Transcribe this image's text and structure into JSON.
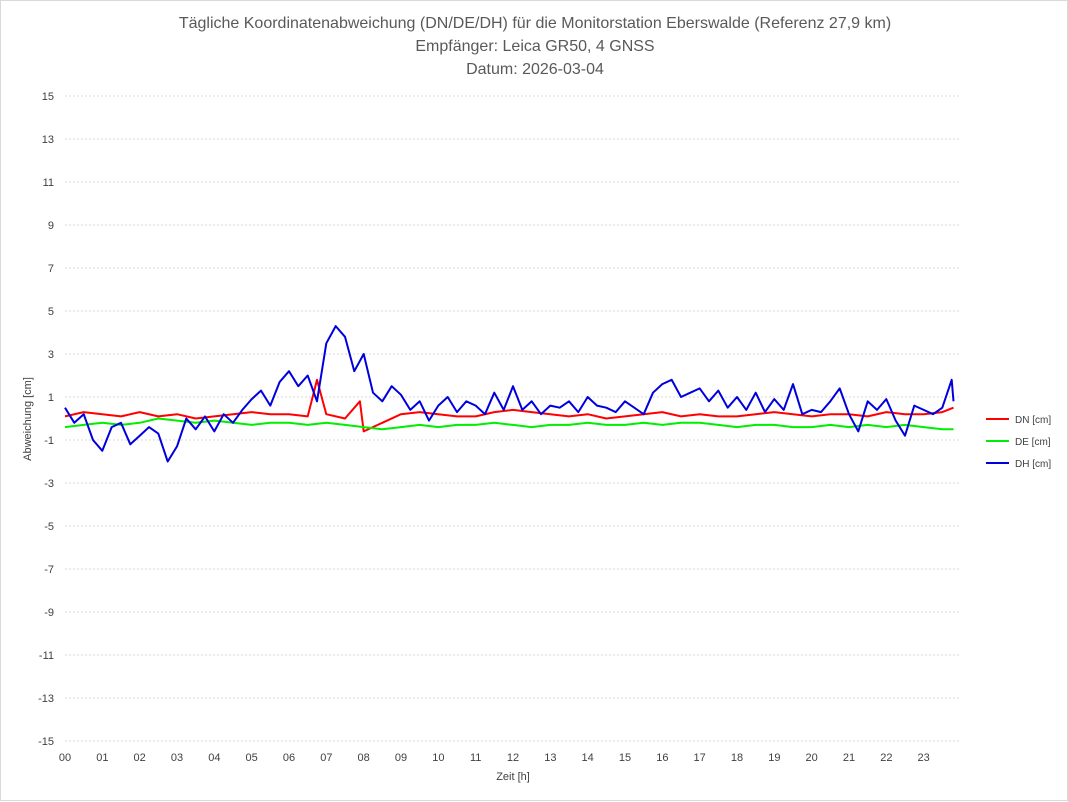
{
  "chart_data": {
    "type": "line",
    "title_lines": [
      "Tägliche Koordinatenabweichung (DN/DE/DH) für die Monitorstation Eberswalde (Referenz 27,9 km)",
      "Empfänger: Leica GR50, 4 GNSS",
      "Datum: 2026-03-04"
    ],
    "xlabel": "Zeit [h]",
    "ylabel": "Abweichung [cm]",
    "xlim": [
      0,
      24
    ],
    "ylim": [
      -15,
      15
    ],
    "x_ticks": [
      "00",
      "01",
      "02",
      "03",
      "04",
      "05",
      "06",
      "07",
      "08",
      "09",
      "10",
      "11",
      "12",
      "13",
      "14",
      "15",
      "16",
      "17",
      "18",
      "19",
      "20",
      "21",
      "22",
      "23"
    ],
    "y_ticks": [
      "15",
      "13",
      "11",
      "9",
      "7",
      "5",
      "3",
      "1",
      "-1",
      "-3",
      "-5",
      "-7",
      "-9",
      "-11",
      "-13",
      "-15"
    ],
    "legend_position": "right",
    "series": [
      {
        "name": "DN [cm]",
        "color": "#ff0000",
        "x": [
          0,
          0.5,
          1,
          1.5,
          2,
          2.5,
          3,
          3.5,
          4,
          4.5,
          5,
          5.5,
          6,
          6.5,
          6.75,
          7,
          7.5,
          7.9,
          8,
          8.5,
          9,
          9.5,
          10,
          10.5,
          11,
          11.5,
          12,
          12.5,
          13,
          13.5,
          14,
          14.5,
          15,
          15.5,
          16,
          16.5,
          17,
          17.5,
          18,
          18.5,
          19,
          19.5,
          20,
          20.5,
          21,
          21.5,
          22,
          22.5,
          23,
          23.5,
          23.8
        ],
        "values": [
          0.1,
          0.3,
          0.2,
          0.1,
          0.3,
          0.1,
          0.2,
          0.0,
          0.1,
          0.2,
          0.3,
          0.2,
          0.2,
          0.1,
          1.8,
          0.2,
          0.0,
          0.8,
          -0.6,
          -0.2,
          0.2,
          0.3,
          0.2,
          0.1,
          0.1,
          0.3,
          0.4,
          0.3,
          0.2,
          0.1,
          0.2,
          0.0,
          0.1,
          0.2,
          0.3,
          0.1,
          0.2,
          0.1,
          0.1,
          0.2,
          0.3,
          0.2,
          0.1,
          0.2,
          0.2,
          0.1,
          0.3,
          0.2,
          0.2,
          0.3,
          0.5
        ]
      },
      {
        "name": "DE [cm]",
        "color": "#00ee00",
        "x": [
          0,
          0.5,
          1,
          1.5,
          2,
          2.5,
          3,
          3.5,
          4,
          4.5,
          5,
          5.5,
          6,
          6.5,
          7,
          7.5,
          8,
          8.5,
          9,
          9.5,
          10,
          10.5,
          11,
          11.5,
          12,
          12.5,
          13,
          13.5,
          14,
          14.5,
          15,
          15.5,
          16,
          16.5,
          17,
          17.5,
          18,
          18.5,
          19,
          19.5,
          20,
          20.5,
          21,
          21.5,
          22,
          22.5,
          23,
          23.5,
          23.8
        ],
        "values": [
          -0.4,
          -0.3,
          -0.2,
          -0.3,
          -0.2,
          0.0,
          -0.1,
          -0.2,
          -0.1,
          -0.2,
          -0.3,
          -0.2,
          -0.2,
          -0.3,
          -0.2,
          -0.3,
          -0.4,
          -0.5,
          -0.4,
          -0.3,
          -0.4,
          -0.3,
          -0.3,
          -0.2,
          -0.3,
          -0.4,
          -0.3,
          -0.3,
          -0.2,
          -0.3,
          -0.3,
          -0.2,
          -0.3,
          -0.2,
          -0.2,
          -0.3,
          -0.4,
          -0.3,
          -0.3,
          -0.4,
          -0.4,
          -0.3,
          -0.4,
          -0.3,
          -0.4,
          -0.3,
          -0.4,
          -0.5,
          -0.5
        ]
      },
      {
        "name": "DH [cm]",
        "color": "#0000dd",
        "x": [
          0,
          0.25,
          0.5,
          0.75,
          1,
          1.25,
          1.5,
          1.75,
          2,
          2.25,
          2.5,
          2.75,
          3,
          3.25,
          3.5,
          3.75,
          4,
          4.25,
          4.5,
          4.75,
          5,
          5.25,
          5.5,
          5.75,
          6,
          6.25,
          6.5,
          6.75,
          7,
          7.25,
          7.5,
          7.75,
          8,
          8.25,
          8.5,
          8.75,
          9,
          9.25,
          9.5,
          9.75,
          10,
          10.25,
          10.5,
          10.75,
          11,
          11.25,
          11.5,
          11.75,
          12,
          12.25,
          12.5,
          12.75,
          13,
          13.25,
          13.5,
          13.75,
          14,
          14.25,
          14.5,
          14.75,
          15,
          15.25,
          15.5,
          15.75,
          16,
          16.25,
          16.5,
          16.75,
          17,
          17.25,
          17.5,
          17.75,
          18,
          18.25,
          18.5,
          18.75,
          19,
          19.25,
          19.5,
          19.75,
          20,
          20.25,
          20.5,
          20.75,
          21,
          21.25,
          21.5,
          21.75,
          22,
          22.25,
          22.5,
          22.75,
          23,
          23.25,
          23.5,
          23.75,
          23.8
        ],
        "values": [
          0.5,
          -0.2,
          0.2,
          -1.0,
          -1.5,
          -0.4,
          -0.2,
          -1.2,
          -0.8,
          -0.4,
          -0.7,
          -2.0,
          -1.3,
          0.0,
          -0.5,
          0.1,
          -0.6,
          0.2,
          -0.2,
          0.4,
          0.9,
          1.3,
          0.6,
          1.7,
          2.2,
          1.5,
          2.0,
          0.8,
          3.5,
          4.3,
          3.8,
          2.2,
          3.0,
          1.2,
          0.8,
          1.5,
          1.1,
          0.4,
          0.8,
          -0.1,
          0.6,
          1.0,
          0.3,
          0.8,
          0.6,
          0.2,
          1.2,
          0.4,
          1.5,
          0.4,
          0.8,
          0.2,
          0.6,
          0.5,
          0.8,
          0.3,
          1.0,
          0.6,
          0.5,
          0.3,
          0.8,
          0.5,
          0.2,
          1.2,
          1.6,
          1.8,
          1.0,
          1.2,
          1.4,
          0.8,
          1.3,
          0.5,
          1.0,
          0.4,
          1.2,
          0.3,
          0.9,
          0.4,
          1.6,
          0.2,
          0.4,
          0.3,
          0.8,
          1.4,
          0.2,
          -0.6,
          0.8,
          0.4,
          0.9,
          -0.1,
          -0.8,
          0.6,
          0.4,
          0.2,
          0.5,
          1.8,
          0.8
        ]
      }
    ]
  }
}
